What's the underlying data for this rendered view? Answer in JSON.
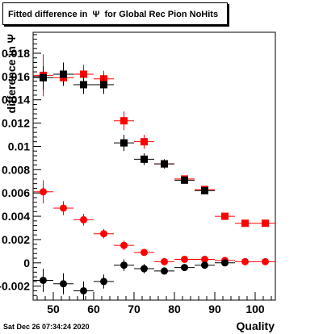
{
  "title": "Fitted difference in  Ψ  for Global Rec Pion NoHits",
  "timestamp": "Sat Dec 26 07:34:24 2020",
  "chart_data": {
    "type": "scatter",
    "xlabel": "Quality",
    "ylabel": "difference in Ψ",
    "xlim": [
      45,
      105
    ],
    "ylim": [
      -0.0032,
      0.0198
    ],
    "x_ticks": [
      50,
      60,
      70,
      80,
      90,
      100
    ],
    "x_tick_labels": [
      "50",
      "60",
      "70",
      "80",
      "90",
      "100"
    ],
    "y_ticks": [
      -0.002,
      0,
      0.002,
      0.004,
      0.006,
      0.008,
      0.01,
      0.012,
      0.014,
      0.016,
      0.018
    ],
    "y_tick_labels": [
      "-0.002",
      "0",
      "0.002",
      "0.004",
      "0.006",
      "0.008",
      "0.01",
      "0.012",
      "0.014",
      "0.016",
      "0.018"
    ],
    "grid": false,
    "legend": "none",
    "series": [
      {
        "color": "#ff0000",
        "marker": "square",
        "points": [
          {
            "x": 47.5,
            "y": 0.0161,
            "xerr": 2.5,
            "yerr": 0.0018
          },
          {
            "x": 52.5,
            "y": 0.0159,
            "xerr": 2.5,
            "yerr": 0.0007
          },
          {
            "x": 57.5,
            "y": 0.0162,
            "xerr": 2.5,
            "yerr": 0.0008
          },
          {
            "x": 62.5,
            "y": 0.0158,
            "xerr": 2.5,
            "yerr": 0.0007
          },
          {
            "x": 67.5,
            "y": 0.0122,
            "xerr": 2.5,
            "yerr": 0.0008
          },
          {
            "x": 72.5,
            "y": 0.0104,
            "xerr": 2.5,
            "yerr": 0.0006
          },
          {
            "x": 77.5,
            "y": 0.0085,
            "xerr": 2.5,
            "yerr": 0.0004
          },
          {
            "x": 82.5,
            "y": 0.0072,
            "xerr": 2.5,
            "yerr": 0.0003
          },
          {
            "x": 87.5,
            "y": 0.0063,
            "xerr": 2.5,
            "yerr": 0.0002
          },
          {
            "x": 92.5,
            "y": 0.004,
            "xerr": 2.5,
            "yerr": 0.0002
          },
          {
            "x": 97.5,
            "y": 0.0034,
            "xerr": 2.5,
            "yerr": 0.0002
          },
          {
            "x": 102.5,
            "y": 0.0034,
            "xerr": 2.5,
            "yerr": 0.0002
          }
        ]
      },
      {
        "color": "#000000",
        "marker": "square",
        "points": [
          {
            "x": 47.5,
            "y": 0.0159,
            "xerr": 2.5,
            "yerr": 0.001
          },
          {
            "x": 52.5,
            "y": 0.0162,
            "xerr": 2.5,
            "yerr": 0.001
          },
          {
            "x": 57.5,
            "y": 0.0153,
            "xerr": 2.5,
            "yerr": 0.0008
          },
          {
            "x": 62.5,
            "y": 0.0153,
            "xerr": 2.5,
            "yerr": 0.0008
          },
          {
            "x": 67.5,
            "y": 0.0103,
            "xerr": 2.5,
            "yerr": 0.0007
          },
          {
            "x": 72.5,
            "y": 0.0089,
            "xerr": 2.5,
            "yerr": 0.0005
          },
          {
            "x": 77.5,
            "y": 0.0085,
            "xerr": 2.5,
            "yerr": 0.0004
          },
          {
            "x": 82.5,
            "y": 0.0071,
            "xerr": 2.5,
            "yerr": 0.0003
          },
          {
            "x": 87.5,
            "y": 0.0062,
            "xerr": 2.5,
            "yerr": 0.0002
          }
        ]
      },
      {
        "color": "#ff0000",
        "marker": "circle",
        "points": [
          {
            "x": 47.5,
            "y": 0.0061,
            "xerr": 2.5,
            "yerr": 0.001
          },
          {
            "x": 52.5,
            "y": 0.0047,
            "xerr": 2.5,
            "yerr": 0.0006
          },
          {
            "x": 57.5,
            "y": 0.0037,
            "xerr": 2.5,
            "yerr": 0.0005
          },
          {
            "x": 62.5,
            "y": 0.0025,
            "xerr": 2.5,
            "yerr": 0.0004
          },
          {
            "x": 67.5,
            "y": 0.0015,
            "xerr": 2.5,
            "yerr": 0.0004
          },
          {
            "x": 72.5,
            "y": 0.0009,
            "xerr": 2.5,
            "yerr": 0.0003
          },
          {
            "x": 77.5,
            "y": 0.0001,
            "xerr": 2.5,
            "yerr": 0.0002
          },
          {
            "x": 82.5,
            "y": 0.0003,
            "xerr": 2.5,
            "yerr": 0.0002
          },
          {
            "x": 87.5,
            "y": 0.0003,
            "xerr": 2.5,
            "yerr": 0.0002
          },
          {
            "x": 92.5,
            "y": 0.0002,
            "xerr": 2.5,
            "yerr": 0.0002
          },
          {
            "x": 97.5,
            "y": 0.0001,
            "xerr": 2.5,
            "yerr": 0.0001
          },
          {
            "x": 102.5,
            "y": 0.0001,
            "xerr": 2.5,
            "yerr": 0.0001
          }
        ]
      },
      {
        "color": "#000000",
        "marker": "circle",
        "points": [
          {
            "x": 47.5,
            "y": -0.0015,
            "xerr": 2.5,
            "yerr": 0.001
          },
          {
            "x": 52.5,
            "y": -0.0018,
            "xerr": 2.5,
            "yerr": 0.0009
          },
          {
            "x": 57.5,
            "y": -0.0024,
            "xerr": 2.5,
            "yerr": 0.0008
          },
          {
            "x": 62.5,
            "y": -0.0016,
            "xerr": 2.5,
            "yerr": 0.0006
          },
          {
            "x": 67.5,
            "y": -0.0002,
            "xerr": 2.5,
            "yerr": 0.0005
          },
          {
            "x": 72.5,
            "y": -0.0005,
            "xerr": 2.5,
            "yerr": 0.0004
          },
          {
            "x": 77.5,
            "y": -0.0007,
            "xerr": 2.5,
            "yerr": 0.0003
          },
          {
            "x": 82.5,
            "y": -0.0004,
            "xerr": 2.5,
            "yerr": 0.0002
          },
          {
            "x": 87.5,
            "y": -0.0002,
            "xerr": 2.5,
            "yerr": 0.0002
          },
          {
            "x": 92.5,
            "y": 0.0,
            "xerr": 2.5,
            "yerr": 0.0002
          }
        ]
      }
    ]
  }
}
